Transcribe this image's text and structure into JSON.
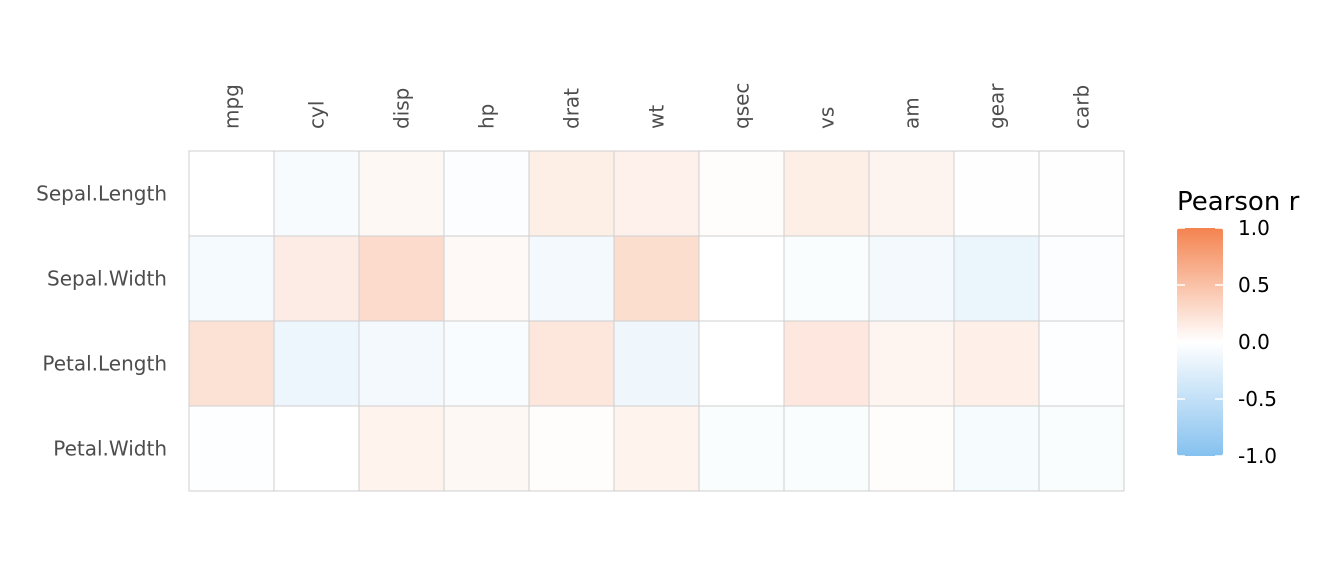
{
  "chart_data": {
    "type": "heatmap",
    "title": "",
    "xlabel": "",
    "ylabel": "",
    "x_categories": [
      "mpg",
      "cyl",
      "disp",
      "hp",
      "drat",
      "wt",
      "qsec",
      "vs",
      "am",
      "gear",
      "carb"
    ],
    "y_categories": [
      "Sepal.Length",
      "Sepal.Width",
      "Petal.Length",
      "Petal.Width"
    ],
    "values": [
      [
        0.0,
        -0.06,
        0.06,
        -0.03,
        0.14,
        0.11,
        0.02,
        0.14,
        0.09,
        -0.01,
        -0.01
      ],
      [
        -0.08,
        0.15,
        0.29,
        0.05,
        -0.1,
        0.27,
        0.0,
        -0.04,
        -0.1,
        -0.16,
        -0.03
      ],
      [
        0.24,
        -0.14,
        -0.09,
        -0.05,
        0.2,
        -0.13,
        0.0,
        0.19,
        0.08,
        0.13,
        -0.02
      ],
      [
        -0.02,
        0.0,
        0.1,
        0.06,
        0.02,
        0.1,
        -0.04,
        -0.04,
        0.02,
        -0.07,
        -0.04
      ]
    ],
    "legend": {
      "title": "Pearson r",
      "position": "right",
      "range": [
        -1.0,
        1.0
      ],
      "ticks": [
        "1.0",
        "0.5",
        "0.0",
        "-0.5",
        "-1.0"
      ],
      "colors": {
        "low": "#85c1ef",
        "mid": "#ffffff",
        "high": "#f4834f"
      }
    },
    "grid": false
  }
}
